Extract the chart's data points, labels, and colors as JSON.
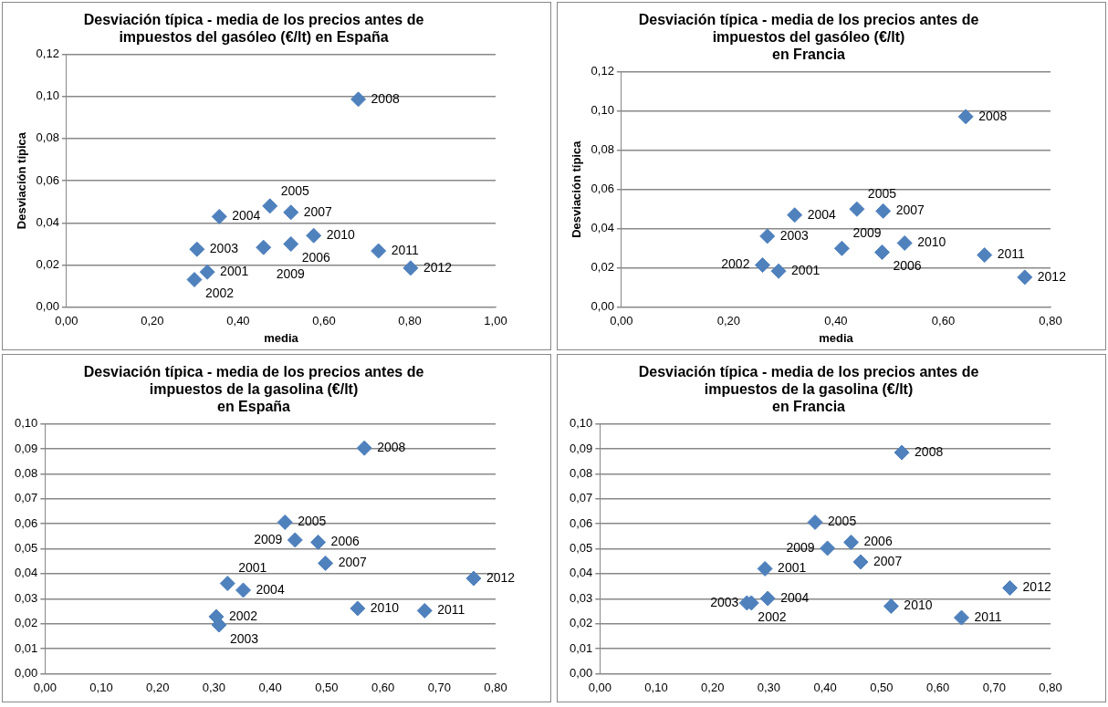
{
  "chart_data": [
    {
      "type": "scatter",
      "title": "Desviación típica - media de los precios antes de impuestos del gasóleo (€/lt) en España",
      "xlabel": "media",
      "ylabel": "Desviación típica",
      "marker": "diamond",
      "grid": "y",
      "series": [
        {
          "color": "#4f81bd",
          "x": [
            0.328,
            0.298,
            0.304,
            0.356,
            0.474,
            0.523,
            0.523,
            0.68,
            0.459,
            0.576,
            0.727,
            0.802
          ],
          "values": [
            0.0167,
            0.0131,
            0.0275,
            0.043,
            0.048,
            0.03,
            0.045,
            0.0986,
            0.0284,
            0.034,
            0.0267,
            0.0186
          ]
        }
      ],
      "annotations": [
        {
          "text": "2001",
          "x": 0.328,
          "y": 0.0167
        },
        {
          "text": "2002",
          "x": 0.298,
          "y": 0.0131
        },
        {
          "text": "2003",
          "x": 0.304,
          "y": 0.0275
        },
        {
          "text": "2004",
          "x": 0.356,
          "y": 0.043
        },
        {
          "text": "2005",
          "x": 0.474,
          "y": 0.048
        },
        {
          "text": "2006",
          "x": 0.523,
          "y": 0.03
        },
        {
          "text": "2007",
          "x": 0.523,
          "y": 0.045
        },
        {
          "text": "2008",
          "x": 0.68,
          "y": 0.0986
        },
        {
          "text": "2009",
          "x": 0.459,
          "y": 0.0284
        },
        {
          "text": "2010",
          "x": 0.576,
          "y": 0.034
        },
        {
          "text": "2011",
          "x": 0.727,
          "y": 0.0267
        },
        {
          "text": "2012",
          "x": 0.802,
          "y": 0.0186
        }
      ],
      "xlim": [
        0,
        1
      ],
      "xticks": [
        {
          "value": 0,
          "label": "0,00"
        },
        {
          "value": 0.2,
          "label": "0,20"
        },
        {
          "value": 0.4,
          "label": "0,40"
        },
        {
          "value": 0.6,
          "label": "0,60"
        },
        {
          "value": 0.8,
          "label": "0,80"
        },
        {
          "value": 1,
          "label": "1,00"
        }
      ],
      "ylim": [
        0,
        0.12
      ],
      "yticks": [
        {
          "value": 0,
          "label": "0,00"
        },
        {
          "value": 0.02,
          "label": "0,02"
        },
        {
          "value": 0.04,
          "label": "0,04"
        },
        {
          "value": 0.06,
          "label": "0,06"
        },
        {
          "value": 0.08,
          "label": "0,08"
        },
        {
          "value": 0.1,
          "label": "0,10"
        },
        {
          "value": 0.12,
          "label": "0,12"
        }
      ]
    },
    {
      "type": "scatter",
      "title": "Desviación típica - media de los precios antes de impuestos del gasóleo (€/lt)\nen Francia",
      "xlabel": "media",
      "ylabel": "Desviación típica",
      "marker": "diamond",
      "grid": "y",
      "series": [
        {
          "color": "#4f81bd",
          "x": [
            0.293,
            0.263,
            0.272,
            0.323,
            0.439,
            0.486,
            0.488,
            0.642,
            0.411,
            0.528,
            0.677,
            0.752
          ],
          "values": [
            0.0184,
            0.0215,
            0.0362,
            0.047,
            0.05,
            0.028,
            0.049,
            0.0971,
            0.03,
            0.0327,
            0.0266,
            0.0153
          ]
        }
      ],
      "annotations": [
        {
          "text": "2001",
          "x": 0.293,
          "y": 0.0184
        },
        {
          "text": "2002",
          "x": 0.263,
          "y": 0.0215
        },
        {
          "text": "2003",
          "x": 0.272,
          "y": 0.0362
        },
        {
          "text": "2004",
          "x": 0.323,
          "y": 0.047
        },
        {
          "text": "2005",
          "x": 0.439,
          "y": 0.05
        },
        {
          "text": "2006",
          "x": 0.486,
          "y": 0.028
        },
        {
          "text": "2007",
          "x": 0.488,
          "y": 0.049
        },
        {
          "text": "2008",
          "x": 0.642,
          "y": 0.0971
        },
        {
          "text": "2009",
          "x": 0.411,
          "y": 0.03
        },
        {
          "text": "2010",
          "x": 0.528,
          "y": 0.0327
        },
        {
          "text": "2011",
          "x": 0.677,
          "y": 0.0266
        },
        {
          "text": "2012",
          "x": 0.752,
          "y": 0.0153
        }
      ],
      "xlim": [
        0,
        0.8
      ],
      "xticks": [
        {
          "value": 0,
          "label": "0,00"
        },
        {
          "value": 0.2,
          "label": "0,20"
        },
        {
          "value": 0.4,
          "label": "0,40"
        },
        {
          "value": 0.6,
          "label": "0,60"
        },
        {
          "value": 0.8,
          "label": "0,80"
        }
      ],
      "ylim": [
        0,
        0.12
      ],
      "yticks": [
        {
          "value": 0,
          "label": "0,00"
        },
        {
          "value": 0.02,
          "label": "0,02"
        },
        {
          "value": 0.04,
          "label": "0,04"
        },
        {
          "value": 0.06,
          "label": "0,06"
        },
        {
          "value": 0.08,
          "label": "0,08"
        },
        {
          "value": 0.1,
          "label": "0,10"
        },
        {
          "value": 0.12,
          "label": "0,12"
        }
      ]
    },
    {
      "type": "scatter",
      "title": "Desviación típica - media de los precios antes de impuestos de la gasolina (€/lt)\nen España",
      "marker": "diamond",
      "grid": "y",
      "series": [
        {
          "color": "#4f81bd",
          "x": [
            0.324,
            0.304,
            0.309,
            0.352,
            0.426,
            0.485,
            0.498,
            0.567,
            0.444,
            0.555,
            0.674,
            0.761
          ],
          "values": [
            0.0361,
            0.0228,
            0.0195,
            0.0334,
            0.0606,
            0.0526,
            0.0442,
            0.0903,
            0.0535,
            0.0261,
            0.0252,
            0.0381
          ]
        }
      ],
      "annotations": [
        {
          "text": "2001",
          "x": 0.324,
          "y": 0.0361
        },
        {
          "text": "2002",
          "x": 0.304,
          "y": 0.0228
        },
        {
          "text": "2003",
          "x": 0.309,
          "y": 0.0195
        },
        {
          "text": "2004",
          "x": 0.352,
          "y": 0.0334
        },
        {
          "text": "2005",
          "x": 0.426,
          "y": 0.0606
        },
        {
          "text": "2006",
          "x": 0.485,
          "y": 0.0526
        },
        {
          "text": "2007",
          "x": 0.498,
          "y": 0.0442
        },
        {
          "text": "2008",
          "x": 0.567,
          "y": 0.0903
        },
        {
          "text": "2009",
          "x": 0.444,
          "y": 0.0535
        },
        {
          "text": "2010",
          "x": 0.555,
          "y": 0.0261
        },
        {
          "text": "2011",
          "x": 0.674,
          "y": 0.0252
        },
        {
          "text": "2012",
          "x": 0.761,
          "y": 0.0381
        }
      ],
      "xlim": [
        0,
        0.8
      ],
      "xticks": [
        {
          "value": 0,
          "label": "0,00"
        },
        {
          "value": 0.1,
          "label": "0,10"
        },
        {
          "value": 0.2,
          "label": "0,20"
        },
        {
          "value": 0.3,
          "label": "0,30"
        },
        {
          "value": 0.4,
          "label": "0,40"
        },
        {
          "value": 0.5,
          "label": "0,50"
        },
        {
          "value": 0.6,
          "label": "0,60"
        },
        {
          "value": 0.7,
          "label": "0,70"
        },
        {
          "value": 0.8,
          "label": "0,80"
        }
      ],
      "ylim": [
        0,
        0.1
      ],
      "yticks": [
        {
          "value": 0,
          "label": "0,00"
        },
        {
          "value": 0.01,
          "label": "0,01"
        },
        {
          "value": 0.02,
          "label": "0,02"
        },
        {
          "value": 0.03,
          "label": "0,03"
        },
        {
          "value": 0.04,
          "label": "0,04"
        },
        {
          "value": 0.05,
          "label": "0,05"
        },
        {
          "value": 0.06,
          "label": "0,06"
        },
        {
          "value": 0.07,
          "label": "0,07"
        },
        {
          "value": 0.08,
          "label": "0,08"
        },
        {
          "value": 0.09,
          "label": "0,09"
        },
        {
          "value": 0.1,
          "label": "0,10"
        }
      ]
    },
    {
      "type": "scatter",
      "title": "Desviación típica - media de los precios antes de impuestos de la gasolina (€/lt)\nen Francia",
      "marker": "diamond",
      "grid": "y",
      "series": [
        {
          "color": "#4f81bd",
          "x": [
            0.293,
            0.261,
            0.269,
            0.298,
            0.382,
            0.446,
            0.463,
            0.536,
            0.404,
            0.517,
            0.642,
            0.728
          ],
          "values": [
            0.042,
            0.0283,
            0.0283,
            0.0301,
            0.0606,
            0.0526,
            0.0447,
            0.0885,
            0.0502,
            0.027,
            0.0224,
            0.0343
          ]
        }
      ],
      "annotations": [
        {
          "text": "2001",
          "x": 0.293,
          "y": 0.042
        },
        {
          "text": "2002",
          "x": 0.261,
          "y": 0.0283
        },
        {
          "text": "2003",
          "x": 0.269,
          "y": 0.0283
        },
        {
          "text": "2004",
          "x": 0.298,
          "y": 0.0301
        },
        {
          "text": "2005",
          "x": 0.382,
          "y": 0.0606
        },
        {
          "text": "2006",
          "x": 0.446,
          "y": 0.0526
        },
        {
          "text": "2007",
          "x": 0.463,
          "y": 0.0447
        },
        {
          "text": "2008",
          "x": 0.536,
          "y": 0.0885
        },
        {
          "text": "2009",
          "x": 0.404,
          "y": 0.0502
        },
        {
          "text": "2010",
          "x": 0.517,
          "y": 0.027
        },
        {
          "text": "2011",
          "x": 0.642,
          "y": 0.0224
        },
        {
          "text": "2012",
          "x": 0.728,
          "y": 0.0343
        }
      ],
      "xlim": [
        0,
        0.8
      ],
      "xticks": [
        {
          "value": 0,
          "label": "0,00"
        },
        {
          "value": 0.1,
          "label": "0,10"
        },
        {
          "value": 0.2,
          "label": "0,20"
        },
        {
          "value": 0.3,
          "label": "0,30"
        },
        {
          "value": 0.4,
          "label": "0,40"
        },
        {
          "value": 0.5,
          "label": "0,50"
        },
        {
          "value": 0.6,
          "label": "0,60"
        },
        {
          "value": 0.7,
          "label": "0,70"
        },
        {
          "value": 0.8,
          "label": "0,80"
        }
      ],
      "ylim": [
        0,
        0.1
      ],
      "yticks": [
        {
          "value": 0,
          "label": "0,00"
        },
        {
          "value": 0.01,
          "label": "0,01"
        },
        {
          "value": 0.02,
          "label": "0,02"
        },
        {
          "value": 0.03,
          "label": "0,03"
        },
        {
          "value": 0.04,
          "label": "0,04"
        },
        {
          "value": 0.05,
          "label": "0,05"
        },
        {
          "value": 0.06,
          "label": "0,06"
        },
        {
          "value": 0.07,
          "label": "0,07"
        },
        {
          "value": 0.08,
          "label": "0,08"
        },
        {
          "value": 0.09,
          "label": "0,09"
        },
        {
          "value": 0.1,
          "label": "0,10"
        }
      ]
    }
  ]
}
